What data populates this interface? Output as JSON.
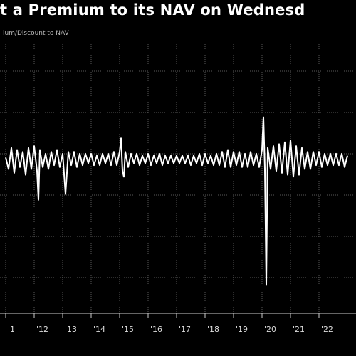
{
  "chart_data": {
    "type": "line",
    "title": "t a Premium to its NAV on Wednesd",
    "subtitle": "ium/Discount to NAV",
    "xlabel": "",
    "ylabel": "",
    "x_ticks": [
      "'1",
      "'12",
      "'13",
      "'14",
      "'15",
      "'16",
      "'17",
      "'18",
      "'19",
      "'20",
      "'21",
      "'22"
    ],
    "xlim": [
      2011.0,
      2023.0
    ],
    "ylim": [
      -8,
      6
    ],
    "grid": true,
    "legend": "none",
    "line_color": "#ffffff",
    "background_color": "#000000",
    "grid_color": "#5a5a5a",
    "series": [
      {
        "values": [
          [
            2011.0,
            0.1
          ],
          [
            2011.1,
            -0.5
          ],
          [
            2011.2,
            0.6
          ],
          [
            2011.3,
            -0.7
          ],
          [
            2011.4,
            0.5
          ],
          [
            2011.5,
            -0.4
          ],
          [
            2011.6,
            0.4
          ],
          [
            2011.7,
            -0.8
          ],
          [
            2011.8,
            0.6
          ],
          [
            2011.9,
            -0.5
          ],
          [
            2012.0,
            0.7
          ],
          [
            2012.1,
            -0.6
          ],
          [
            2012.15,
            -2.1
          ],
          [
            2012.2,
            0.5
          ],
          [
            2012.3,
            -0.4
          ],
          [
            2012.4,
            0.3
          ],
          [
            2012.5,
            -0.5
          ],
          [
            2012.6,
            0.4
          ],
          [
            2012.7,
            -0.3
          ],
          [
            2012.8,
            0.5
          ],
          [
            2012.9,
            -0.4
          ],
          [
            2013.0,
            0.3
          ],
          [
            2013.1,
            -1.8
          ],
          [
            2013.2,
            0.4
          ],
          [
            2013.3,
            -0.3
          ],
          [
            2013.4,
            0.4
          ],
          [
            2013.5,
            -0.4
          ],
          [
            2013.6,
            0.3
          ],
          [
            2013.7,
            -0.3
          ],
          [
            2013.8,
            0.3
          ],
          [
            2013.9,
            -0.2
          ],
          [
            2014.0,
            0.3
          ],
          [
            2014.1,
            -0.3
          ],
          [
            2014.2,
            0.2
          ],
          [
            2014.3,
            -0.3
          ],
          [
            2014.4,
            0.3
          ],
          [
            2014.5,
            -0.2
          ],
          [
            2014.6,
            0.3
          ],
          [
            2014.7,
            -0.3
          ],
          [
            2014.8,
            0.4
          ],
          [
            2014.9,
            -0.3
          ],
          [
            2015.0,
            0.4
          ],
          [
            2015.05,
            1.1
          ],
          [
            2015.1,
            -0.6
          ],
          [
            2015.15,
            -0.9
          ],
          [
            2015.2,
            0.4
          ],
          [
            2015.3,
            -0.4
          ],
          [
            2015.4,
            0.3
          ],
          [
            2015.5,
            -0.2
          ],
          [
            2015.6,
            0.3
          ],
          [
            2015.7,
            -0.3
          ],
          [
            2015.8,
            0.2
          ],
          [
            2015.9,
            -0.2
          ],
          [
            2016.0,
            0.3
          ],
          [
            2016.1,
            -0.3
          ],
          [
            2016.2,
            0.2
          ],
          [
            2016.3,
            -0.2
          ],
          [
            2016.4,
            0.3
          ],
          [
            2016.5,
            -0.3
          ],
          [
            2016.6,
            0.2
          ],
          [
            2016.7,
            -0.2
          ],
          [
            2016.8,
            0.2
          ],
          [
            2016.9,
            -0.2
          ],
          [
            2017.0,
            0.2
          ],
          [
            2017.1,
            -0.2
          ],
          [
            2017.2,
            0.2
          ],
          [
            2017.3,
            -0.2
          ],
          [
            2017.4,
            0.2
          ],
          [
            2017.5,
            -0.3
          ],
          [
            2017.6,
            0.2
          ],
          [
            2017.7,
            -0.2
          ],
          [
            2017.8,
            0.3
          ],
          [
            2017.9,
            -0.3
          ],
          [
            2018.0,
            0.3
          ],
          [
            2018.1,
            -0.2
          ],
          [
            2018.2,
            0.2
          ],
          [
            2018.3,
            -0.3
          ],
          [
            2018.4,
            0.3
          ],
          [
            2018.5,
            -0.3
          ],
          [
            2018.6,
            0.4
          ],
          [
            2018.7,
            -0.4
          ],
          [
            2018.8,
            0.5
          ],
          [
            2018.9,
            -0.4
          ],
          [
            2019.0,
            0.4
          ],
          [
            2019.1,
            -0.3
          ],
          [
            2019.2,
            0.4
          ],
          [
            2019.3,
            -0.4
          ],
          [
            2019.4,
            0.3
          ],
          [
            2019.5,
            -0.4
          ],
          [
            2019.6,
            0.4
          ],
          [
            2019.7,
            -0.3
          ],
          [
            2019.8,
            0.3
          ],
          [
            2019.9,
            -0.4
          ],
          [
            2020.0,
            0.5
          ],
          [
            2020.05,
            2.2
          ],
          [
            2020.1,
            -0.5
          ],
          [
            2020.15,
            -6.5
          ],
          [
            2020.2,
            0.6
          ],
          [
            2020.3,
            -0.5
          ],
          [
            2020.4,
            0.7
          ],
          [
            2020.5,
            -0.6
          ],
          [
            2020.6,
            0.8
          ],
          [
            2020.7,
            -0.7
          ],
          [
            2020.8,
            0.9
          ],
          [
            2020.9,
            -0.8
          ],
          [
            2021.0,
            1.0
          ],
          [
            2021.1,
            -0.9
          ],
          [
            2021.2,
            0.7
          ],
          [
            2021.3,
            -0.8
          ],
          [
            2021.4,
            0.6
          ],
          [
            2021.5,
            -0.5
          ],
          [
            2021.6,
            0.4
          ],
          [
            2021.7,
            -0.5
          ],
          [
            2021.8,
            0.4
          ],
          [
            2021.9,
            -0.3
          ],
          [
            2022.0,
            0.4
          ],
          [
            2022.1,
            -0.4
          ],
          [
            2022.2,
            0.3
          ],
          [
            2022.3,
            -0.3
          ],
          [
            2022.4,
            0.3
          ],
          [
            2022.5,
            -0.3
          ],
          [
            2022.6,
            0.3
          ],
          [
            2022.7,
            -0.3
          ],
          [
            2022.8,
            0.3
          ],
          [
            2022.9,
            -0.4
          ],
          [
            2023.0,
            0.2
          ]
        ]
      }
    ]
  }
}
